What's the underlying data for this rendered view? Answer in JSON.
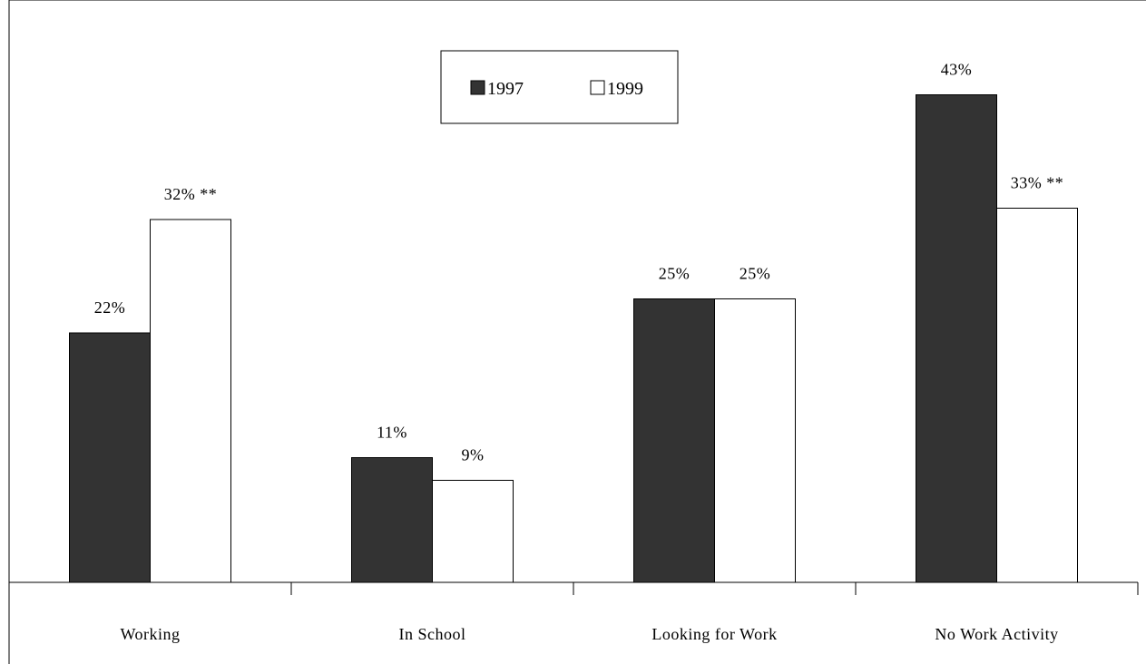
{
  "chart_data": {
    "type": "bar",
    "categories": [
      "Working",
      "In School",
      "Looking for Work",
      "No Work Activity"
    ],
    "series": [
      {
        "name": "1997",
        "values": [
          22,
          11,
          25,
          43
        ],
        "labels": [
          "22%",
          "11%",
          "25%",
          "43%"
        ],
        "color": "#333333"
      },
      {
        "name": "1999",
        "values": [
          32,
          9,
          25,
          33
        ],
        "labels": [
          "32% **",
          "9%",
          "25%",
          "33% **"
        ],
        "color": "#ffffff"
      }
    ],
    "title": "",
    "xlabel": "",
    "ylabel": "",
    "ylim": [
      0,
      50
    ],
    "grid": false,
    "legend_position": "top-center"
  }
}
